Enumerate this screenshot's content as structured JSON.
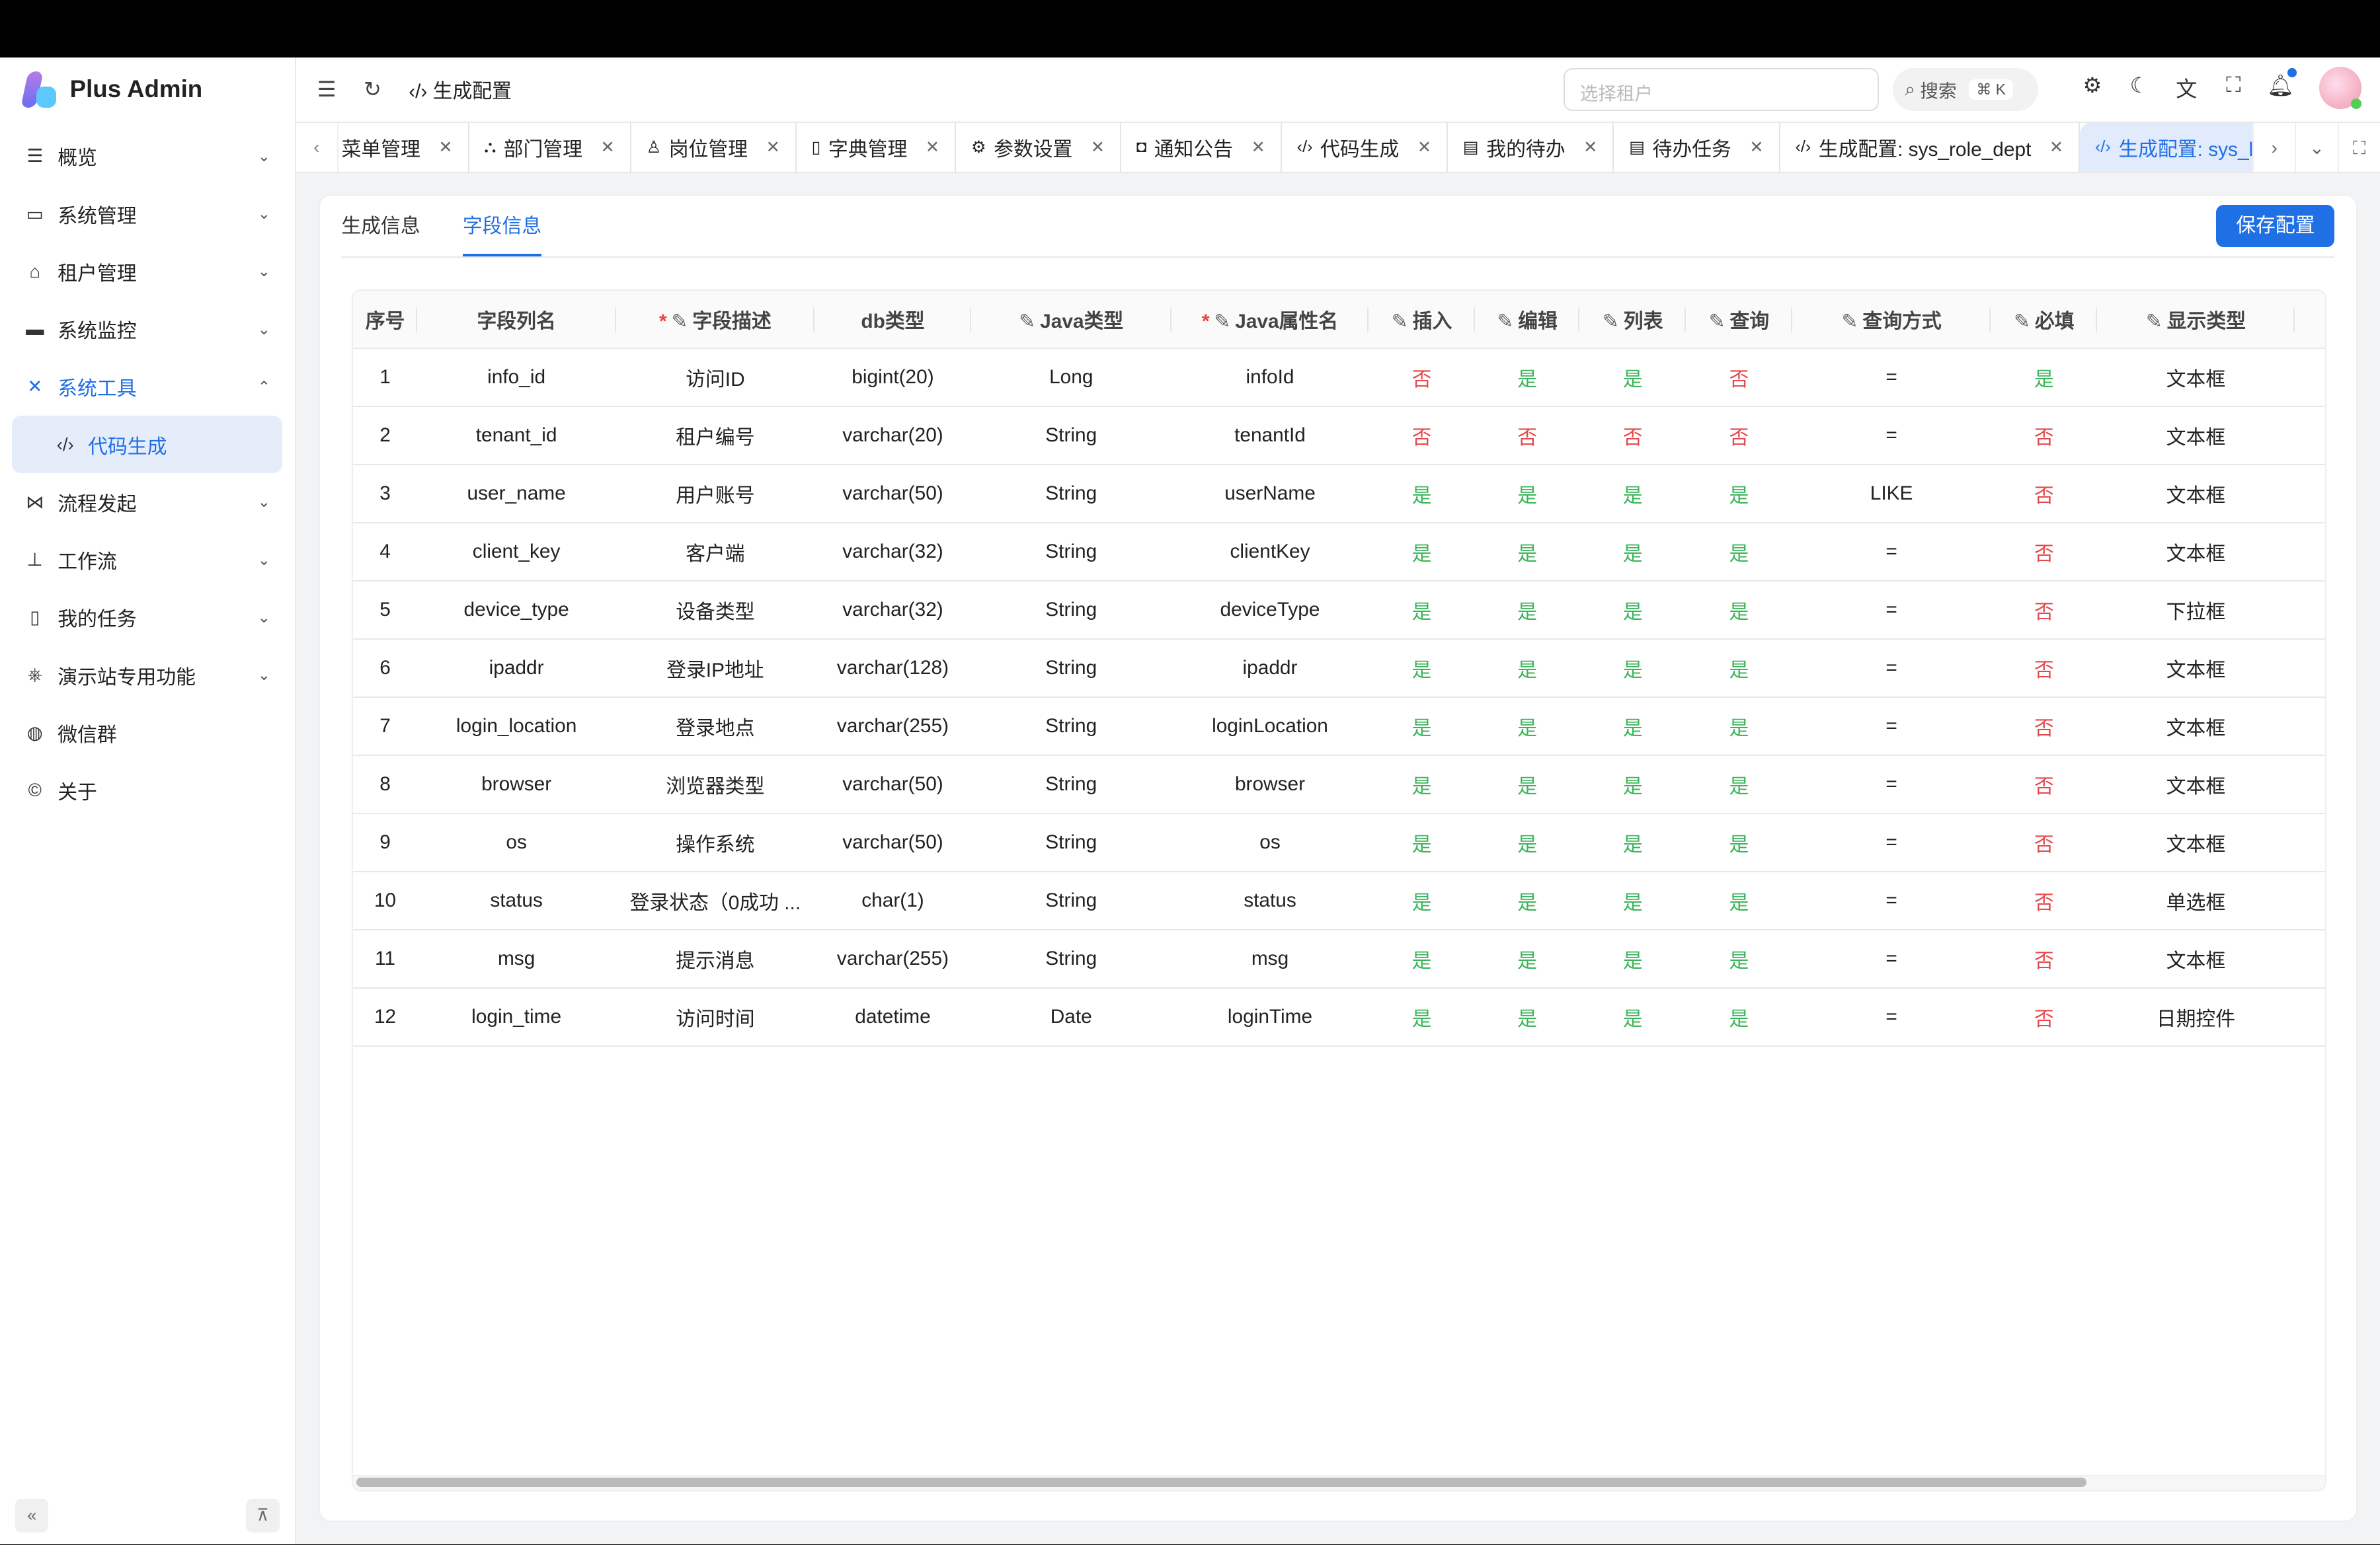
{
  "app": {
    "title": "Plus Admin"
  },
  "sidebar": {
    "items": [
      {
        "label": "概览",
        "icon": "menu-icon",
        "glyph": "☰",
        "chev": "⌄"
      },
      {
        "label": "系统管理",
        "icon": "monitor-icon",
        "glyph": "▭",
        "chev": "⌄"
      },
      {
        "label": "租户管理",
        "icon": "home-icon",
        "glyph": "⌂",
        "chev": "⌄"
      },
      {
        "label": "系统监控",
        "icon": "screen-icon",
        "glyph": "▬",
        "chev": "⌄"
      },
      {
        "label": "系统工具",
        "icon": "tools-icon",
        "glyph": "✕",
        "chev": "⌃",
        "active": true
      },
      {
        "label": "代码生成",
        "icon": "code-icon",
        "glyph": "‹/›",
        "sub": true
      },
      {
        "label": "流程发起",
        "icon": "vscode-icon",
        "glyph": "⋈",
        "chev": "⌄"
      },
      {
        "label": "工作流",
        "icon": "sitemap-icon",
        "glyph": "⊥",
        "chev": "⌄"
      },
      {
        "label": "我的任务",
        "icon": "clipboard-icon",
        "glyph": "▯",
        "chev": "⌄"
      },
      {
        "label": "演示站专用功能",
        "icon": "kubernetes-icon",
        "glyph": "⎈",
        "chev": "⌄"
      },
      {
        "label": "微信群",
        "icon": "wechat-icon",
        "glyph": "◍"
      },
      {
        "label": "关于",
        "icon": "copyright-icon",
        "glyph": "©"
      }
    ]
  },
  "header": {
    "breadcrumb": "生成配置",
    "tenant_placeholder": "选择租户",
    "search_label": "搜索",
    "search_shortcut": "⌘ K"
  },
  "tabs": [
    {
      "label": "菜单管理",
      "icon": "menu-icon",
      "glyph": ""
    },
    {
      "label": "部门管理",
      "icon": "org-icon",
      "glyph": "⛬"
    },
    {
      "label": "岗位管理",
      "icon": "user-icon",
      "glyph": "♙"
    },
    {
      "label": "字典管理",
      "icon": "book-icon",
      "glyph": "▯"
    },
    {
      "label": "参数设置",
      "icon": "gear-icon",
      "glyph": "⚙"
    },
    {
      "label": "通知公告",
      "icon": "notice-icon",
      "glyph": "◘"
    },
    {
      "label": "代码生成",
      "icon": "code-icon",
      "glyph": "‹/›"
    },
    {
      "label": "我的待办",
      "icon": "calendar-icon",
      "glyph": "▤"
    },
    {
      "label": "待办任务",
      "icon": "calendar-icon",
      "glyph": "▤"
    },
    {
      "label": "生成配置: sys_role_dept",
      "icon": "code-icon",
      "glyph": "‹/›"
    },
    {
      "label": "生成配置: sys_logininfor",
      "icon": "code-icon",
      "glyph": "‹/›",
      "active": true
    }
  ],
  "page": {
    "tabs": [
      "生成信息",
      "字段信息"
    ],
    "active_tab": 1,
    "save_label": "保存配置"
  },
  "table": {
    "columns": [
      {
        "label": "序号"
      },
      {
        "label": "字段列名"
      },
      {
        "label": "字段描述",
        "required": true,
        "editable": true
      },
      {
        "label": "db类型"
      },
      {
        "label": "Java类型",
        "editable": true
      },
      {
        "label": "Java属性名",
        "required": true,
        "editable": true
      },
      {
        "label": "插入",
        "editable": true
      },
      {
        "label": "编辑",
        "editable": true
      },
      {
        "label": "列表",
        "editable": true
      },
      {
        "label": "查询",
        "editable": true
      },
      {
        "label": "查询方式",
        "editable": true
      },
      {
        "label": "必填",
        "editable": true
      },
      {
        "label": "显示类型",
        "editable": true
      }
    ],
    "rows": [
      [
        "1",
        "info_id",
        "访问ID",
        "bigint(20)",
        "Long",
        "infoId",
        "否",
        "是",
        "是",
        "否",
        "=",
        "是",
        "文本框"
      ],
      [
        "2",
        "tenant_id",
        "租户编号",
        "varchar(20)",
        "String",
        "tenantId",
        "否",
        "否",
        "否",
        "否",
        "=",
        "否",
        "文本框"
      ],
      [
        "3",
        "user_name",
        "用户账号",
        "varchar(50)",
        "String",
        "userName",
        "是",
        "是",
        "是",
        "是",
        "LIKE",
        "否",
        "文本框"
      ],
      [
        "4",
        "client_key",
        "客户端",
        "varchar(32)",
        "String",
        "clientKey",
        "是",
        "是",
        "是",
        "是",
        "=",
        "否",
        "文本框"
      ],
      [
        "5",
        "device_type",
        "设备类型",
        "varchar(32)",
        "String",
        "deviceType",
        "是",
        "是",
        "是",
        "是",
        "=",
        "否",
        "下拉框"
      ],
      [
        "6",
        "ipaddr",
        "登录IP地址",
        "varchar(128)",
        "String",
        "ipaddr",
        "是",
        "是",
        "是",
        "是",
        "=",
        "否",
        "文本框"
      ],
      [
        "7",
        "login_location",
        "登录地点",
        "varchar(255)",
        "String",
        "loginLocation",
        "是",
        "是",
        "是",
        "是",
        "=",
        "否",
        "文本框"
      ],
      [
        "8",
        "browser",
        "浏览器类型",
        "varchar(50)",
        "String",
        "browser",
        "是",
        "是",
        "是",
        "是",
        "=",
        "否",
        "文本框"
      ],
      [
        "9",
        "os",
        "操作系统",
        "varchar(50)",
        "String",
        "os",
        "是",
        "是",
        "是",
        "是",
        "=",
        "否",
        "文本框"
      ],
      [
        "10",
        "status",
        "登录状态（0成功 ...",
        "char(1)",
        "String",
        "status",
        "是",
        "是",
        "是",
        "是",
        "=",
        "否",
        "单选框"
      ],
      [
        "11",
        "msg",
        "提示消息",
        "varchar(255)",
        "String",
        "msg",
        "是",
        "是",
        "是",
        "是",
        "=",
        "否",
        "文本框"
      ],
      [
        "12",
        "login_time",
        "访问时间",
        "datetime",
        "Date",
        "loginTime",
        "是",
        "是",
        "是",
        "是",
        "=",
        "否",
        "日期控件"
      ]
    ]
  },
  "colors": {
    "accent": "#1f6fe5",
    "yes": "#3bb55a",
    "no": "#e5484d"
  }
}
